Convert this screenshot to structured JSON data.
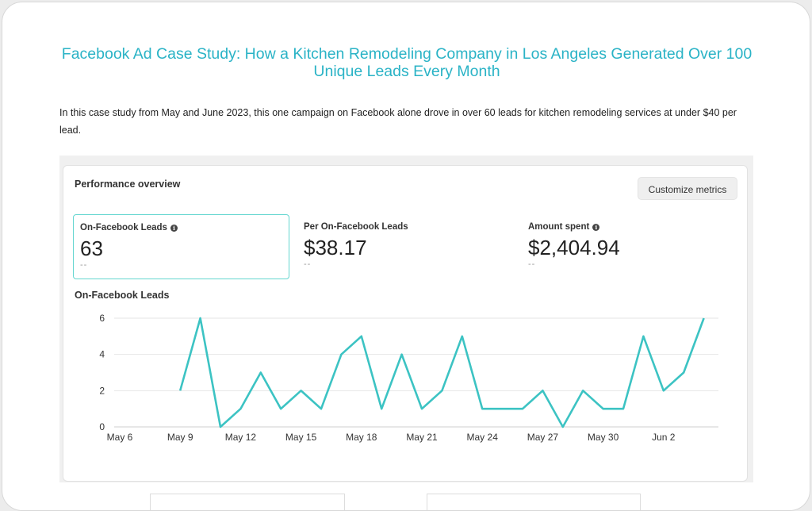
{
  "article": {
    "title": "Facebook Ad Case Study: How a Kitchen Remodeling Company in Los Angeles Generated Over 100 Unique Leads Every Month",
    "intro": "In this case study from May and June 2023, this one campaign on Facebook alone drove in over 60 leads for kitchen remodeling services at under $40 per lead."
  },
  "overview": {
    "title": "Performance overview",
    "customize_label": "Customize metrics",
    "metrics": [
      {
        "label": "On-Facebook Leads",
        "value": "63",
        "compare": "--",
        "info_icon": "info-icon",
        "selected": true
      },
      {
        "label": "Per On-Facebook Leads",
        "value": "$38.17",
        "compare": "--",
        "selected": false
      },
      {
        "label": "Amount spent",
        "value": "$2,404.94",
        "compare": "--",
        "info_icon": "info-icon",
        "selected": false
      }
    ]
  },
  "colors": {
    "title": "#2ab3c6",
    "line": "#3cc3c3",
    "selected_border": "#65d6d0"
  },
  "chart_data": {
    "type": "line",
    "title": "On-Facebook Leads",
    "xlabel": "",
    "ylabel": "",
    "ylim": [
      0,
      6
    ],
    "yticks": [
      0,
      2,
      4,
      6
    ],
    "xticks": [
      "May 6",
      "May 9",
      "May 12",
      "May 15",
      "May 18",
      "May 21",
      "May 24",
      "May 27",
      "May 30",
      "Jun 2"
    ],
    "grid": true,
    "series": [
      {
        "x": [
          "May 9",
          "May 10",
          "May 11",
          "May 12",
          "May 13",
          "May 14",
          "May 15",
          "May 16",
          "May 17",
          "May 18",
          "May 19",
          "May 20",
          "May 21",
          "May 22",
          "May 23",
          "May 24",
          "May 25",
          "May 26",
          "May 27",
          "May 28",
          "May 29",
          "May 30",
          "May 31",
          "Jun 1",
          "Jun 2",
          "Jun 3",
          "Jun 4"
        ],
        "values": [
          2,
          6,
          0,
          1,
          3,
          1,
          2,
          1,
          4,
          5,
          1,
          4,
          1,
          2,
          5,
          1,
          1,
          1,
          2,
          0,
          2,
          1,
          1,
          5,
          2,
          3,
          6
        ]
      }
    ]
  }
}
